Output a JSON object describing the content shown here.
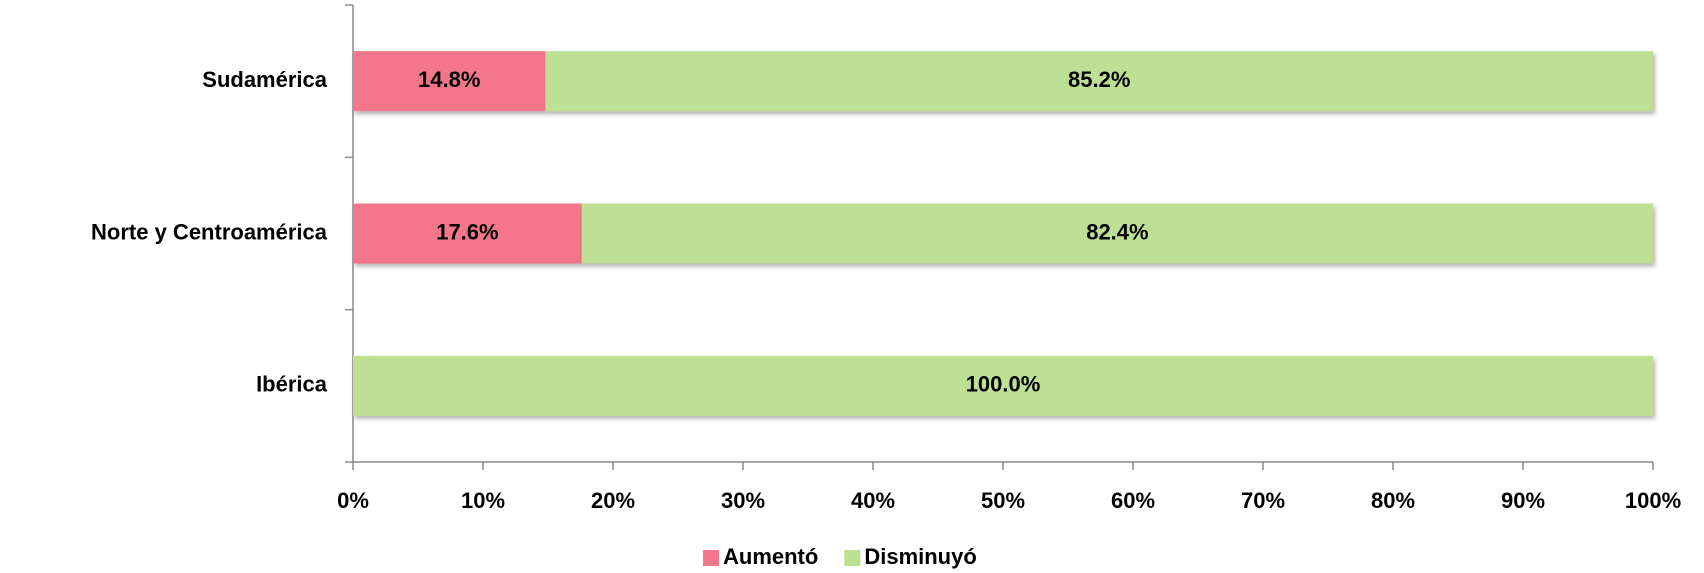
{
  "chart_data": {
    "type": "stacked_barh",
    "categories": [
      "Sudamérica",
      "Norte y Centroamérica",
      "Ibérica"
    ],
    "series": [
      {
        "name": "Aumentó",
        "color": "#f4768a",
        "values": [
          14.8,
          17.6,
          0
        ],
        "value_labels": [
          "14.8%",
          "17.6%",
          null
        ]
      },
      {
        "name": "Disminuyó",
        "color": "#bde095",
        "values": [
          85.2,
          82.4,
          100
        ],
        "value_labels": [
          "85.2%",
          "82.4%",
          "100.0%"
        ]
      }
    ],
    "xlim": [
      0,
      100
    ],
    "xticks": [
      {
        "value": 0,
        "label": "0%"
      },
      {
        "value": 10,
        "label": "10%"
      },
      {
        "value": 20,
        "label": "20%"
      },
      {
        "value": 30,
        "label": "30%"
      },
      {
        "value": 40,
        "label": "40%"
      },
      {
        "value": 50,
        "label": "50%"
      },
      {
        "value": 60,
        "label": "60%"
      },
      {
        "value": 70,
        "label": "70%"
      },
      {
        "value": 80,
        "label": "80%"
      },
      {
        "value": 90,
        "label": "90%"
      },
      {
        "value": 100,
        "label": "100%"
      }
    ],
    "legend": "bottom"
  }
}
